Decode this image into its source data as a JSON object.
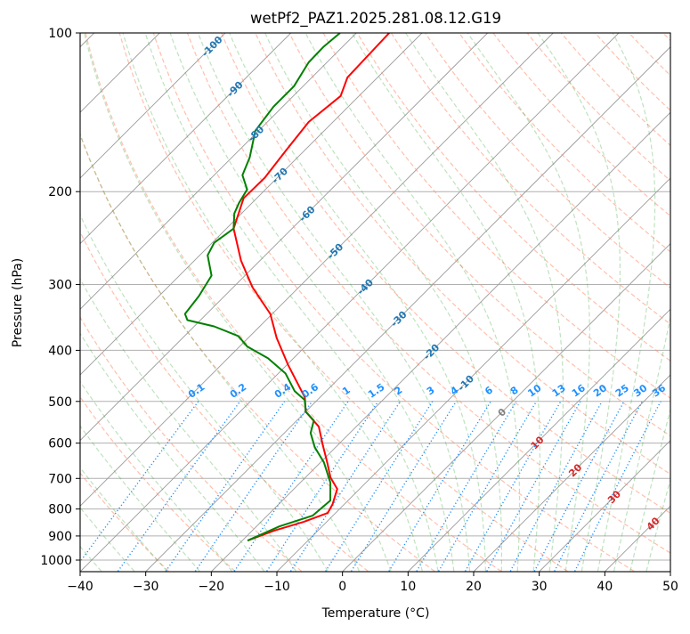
{
  "chart_data": {
    "type": "line",
    "subtype": "skew-t log-p",
    "title": "wetPf2_PAZ1.2025.281.08.12.G19",
    "xlabel": "Temperature (°C)",
    "ylabel": "Pressure (hPa)",
    "xlim": [
      -40,
      50
    ],
    "ylim": [
      1050,
      100
    ],
    "xticks": [
      -40,
      -30,
      -20,
      -10,
      0,
      10,
      20,
      30,
      40,
      50
    ],
    "yticks": [
      100,
      200,
      300,
      400,
      500,
      600,
      700,
      800,
      900,
      1000
    ],
    "grid": true,
    "series": [
      {
        "name": "temperature",
        "color": "#ff0000",
        "points_p_T": [
          [
            100,
            -75.0
          ],
          [
            121.4,
            -74.6
          ],
          [
            131.7,
            -72.8
          ],
          [
            147.5,
            -73.7
          ],
          [
            167.6,
            -72.8
          ],
          [
            188.3,
            -71.9
          ],
          [
            205.9,
            -72.0
          ],
          [
            235,
            -68.9
          ],
          [
            270.2,
            -62.9
          ],
          [
            303.6,
            -57.1
          ],
          [
            341.2,
            -50.3
          ],
          [
            378.7,
            -45.7
          ],
          [
            425.6,
            -39.9
          ],
          [
            491.4,
            -32.3
          ],
          [
            522.9,
            -30.0
          ],
          [
            558.5,
            -25.7
          ],
          [
            603.7,
            -22.4
          ],
          [
            652.4,
            -19.0
          ],
          [
            696.9,
            -16.2
          ],
          [
            733,
            -13.4
          ],
          [
            783.1,
            -11.8
          ],
          [
            814,
            -11.2
          ],
          [
            846.3,
            -13.5
          ],
          [
            879.9,
            -16.7
          ],
          [
            918.3,
            -19.2
          ]
        ]
      },
      {
        "name": "dewpoint",
        "color": "#008000",
        "points_p_T": [
          [
            100,
            -82.5
          ],
          [
            106.4,
            -82.9
          ],
          [
            113.7,
            -82.8
          ],
          [
            126.2,
            -81.4
          ],
          [
            138,
            -81.4
          ],
          [
            153.3,
            -80.5
          ],
          [
            172.2,
            -77.3
          ],
          [
            186.1,
            -75.7
          ],
          [
            198.1,
            -72.8
          ],
          [
            210,
            -72.0
          ],
          [
            220,
            -71.1
          ],
          [
            235,
            -68.9
          ],
          [
            250,
            -69.7
          ],
          [
            264.1,
            -68.8
          ],
          [
            288.6,
            -65.1
          ],
          [
            315.6,
            -63.9
          ],
          [
            341.2,
            -63.3
          ],
          [
            350.5,
            -62.0
          ],
          [
            360.2,
            -57.0
          ],
          [
            375.8,
            -51.8
          ],
          [
            393.7,
            -48.8
          ],
          [
            414.1,
            -43.9
          ],
          [
            442.5,
            -38.9
          ],
          [
            478.2,
            -34.8
          ],
          [
            497.2,
            -31.9
          ],
          [
            522.9,
            -30.0
          ],
          [
            543.6,
            -27.4
          ],
          [
            574,
            -26.0
          ],
          [
            610.7,
            -23.2
          ],
          [
            652.4,
            -19.5
          ],
          [
            713.3,
            -15.4
          ],
          [
            770.9,
            -12.7
          ],
          [
            823.6,
            -13.1
          ],
          [
            862.9,
            -16.5
          ],
          [
            918.3,
            -19.2
          ]
        ]
      }
    ],
    "isotherm_labels": [
      -100,
      -90,
      -80,
      -70,
      -60,
      -50,
      -40,
      -30,
      -20,
      -10,
      0,
      10,
      20,
      30,
      40
    ],
    "isotherm_label_colors": {
      "negative": "#1f77b4",
      "zero": "#808080",
      "positive": "#d62728"
    },
    "mixing_ratio_labels": [
      "0.1",
      "0.2",
      "0.4",
      "0.6",
      "1",
      "1.5",
      "2",
      "3",
      "4",
      "6",
      "8",
      "10",
      "13",
      "16",
      "20",
      "25",
      "30",
      "36"
    ],
    "mixing_ratio_color": "#1e90ff",
    "dry_adiabat_color": "#ff8c69",
    "moist_adiabat_color": "#2ca02c"
  }
}
